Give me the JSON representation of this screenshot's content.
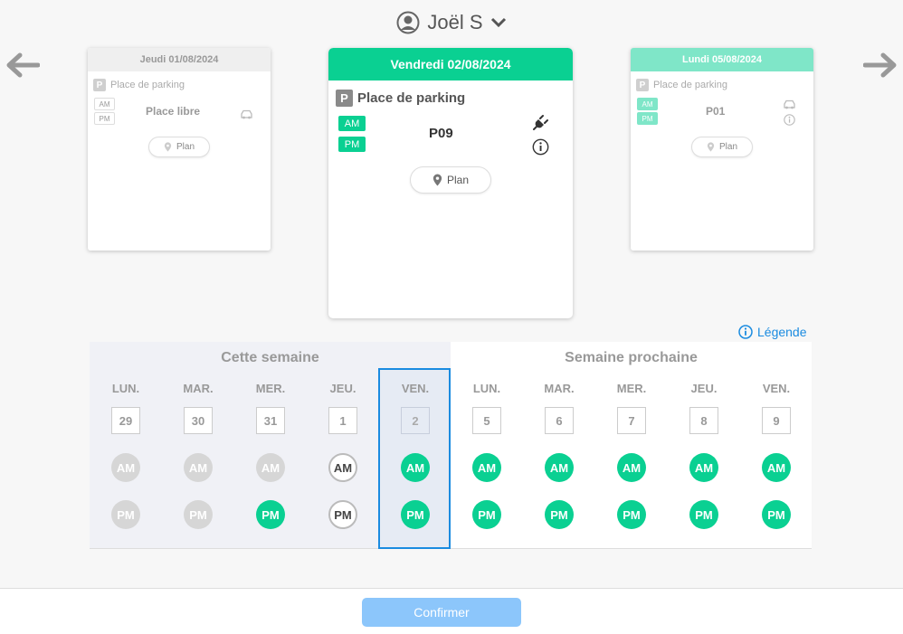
{
  "user": {
    "name": "Joël S"
  },
  "cards": {
    "left": {
      "date": "Jeudi 01/08/2024",
      "title": "Place de parking",
      "am": "AM",
      "pm": "PM",
      "place": "Place libre",
      "plan": "Plan"
    },
    "center": {
      "date": "Vendredi 02/08/2024",
      "title": "Place de parking",
      "am": "AM",
      "pm": "PM",
      "place": "P09",
      "plan": "Plan"
    },
    "right": {
      "date": "Lundi 05/08/2024",
      "title": "Place de parking",
      "am": "AM",
      "pm": "PM",
      "place": "P01",
      "plan": "Plan"
    }
  },
  "legend_label": "Légende",
  "weeks": {
    "this_week": {
      "title": "Cette semaine",
      "days": [
        {
          "name": "LUN.",
          "num": "29",
          "am": "AM",
          "pm": "PM",
          "am_state": "disabled",
          "pm_state": "disabled"
        },
        {
          "name": "MAR.",
          "num": "30",
          "am": "AM",
          "pm": "PM",
          "am_state": "disabled",
          "pm_state": "disabled"
        },
        {
          "name": "MER.",
          "num": "31",
          "am": "AM",
          "pm": "PM",
          "am_state": "disabled",
          "pm_state": "booked"
        },
        {
          "name": "JEU.",
          "num": "1",
          "am": "AM",
          "pm": "PM",
          "am_state": "available",
          "pm_state": "available"
        },
        {
          "name": "VEN.",
          "num": "2",
          "am": "AM",
          "pm": "PM",
          "am_state": "booked",
          "pm_state": "booked",
          "selected": true
        }
      ]
    },
    "next_week": {
      "title": "Semaine prochaine",
      "days": [
        {
          "name": "LUN.",
          "num": "5",
          "am": "AM",
          "pm": "PM",
          "am_state": "booked",
          "pm_state": "booked"
        },
        {
          "name": "MAR.",
          "num": "6",
          "am": "AM",
          "pm": "PM",
          "am_state": "booked",
          "pm_state": "booked"
        },
        {
          "name": "MER.",
          "num": "7",
          "am": "AM",
          "pm": "PM",
          "am_state": "booked",
          "pm_state": "booked"
        },
        {
          "name": "JEU.",
          "num": "8",
          "am": "AM",
          "pm": "PM",
          "am_state": "booked",
          "pm_state": "booked"
        },
        {
          "name": "VEN.",
          "num": "9",
          "am": "AM",
          "pm": "PM",
          "am_state": "booked",
          "pm_state": "booked"
        }
      ]
    }
  },
  "confirm_label": "Confirmer",
  "colors": {
    "accent_green": "#0ad092",
    "pale_green": "#7fe6c8",
    "accent_blue": "#1a8be0",
    "disabled_grey": "#d6d6d6",
    "confirm_disabled": "#8cc6fb"
  },
  "icons": {
    "user": "user-circle-icon",
    "dropdown": "chevron-down-icon",
    "prev": "arrow-left-icon",
    "next": "arrow-right-icon",
    "parking": "parking-icon",
    "car": "car-icon",
    "plug": "plug-icon",
    "info": "info-icon",
    "pin": "map-pin-icon"
  }
}
